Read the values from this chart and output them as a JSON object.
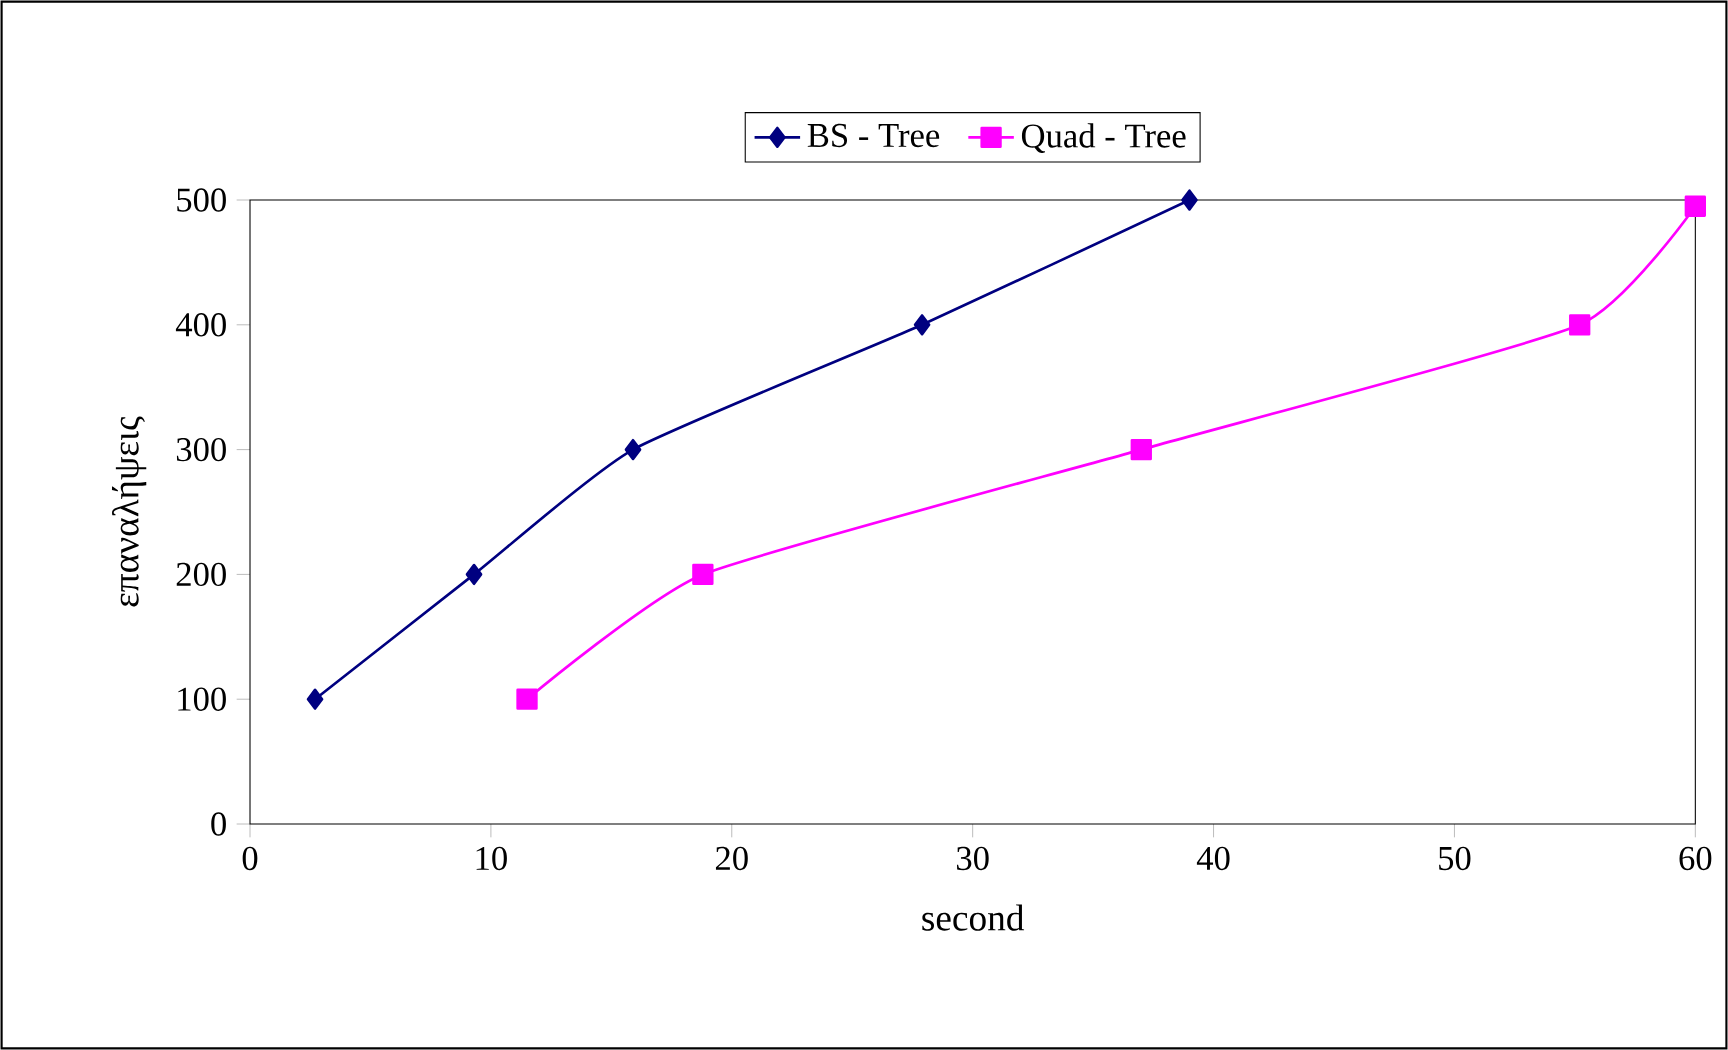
{
  "chart_data": {
    "type": "line",
    "xlabel": "second",
    "ylabel": "επαναλήψεις",
    "series": [
      {
        "name": "BS - Tree",
        "color": "#000080",
        "marker": "diamond",
        "x": [
          2.7,
          9.3,
          15.9,
          27.9,
          39.0
        ],
        "values": [
          100,
          200,
          300,
          400,
          500
        ]
      },
      {
        "name": "Quad - Tree",
        "color": "#ff00ff",
        "marker": "square",
        "x": [
          11.5,
          18.8,
          37.0,
          55.2,
          60
        ],
        "values": [
          100,
          200,
          300,
          400,
          495
        ]
      }
    ],
    "xlim": [
      0,
      60
    ],
    "xticks": [
      0,
      10,
      20,
      30,
      40,
      50,
      60
    ],
    "ylim": [
      0,
      500
    ],
    "yticks": [
      0,
      100,
      200,
      300,
      400,
      500
    ],
    "grid": false,
    "legend": "top",
    "line_style": "solid"
  }
}
